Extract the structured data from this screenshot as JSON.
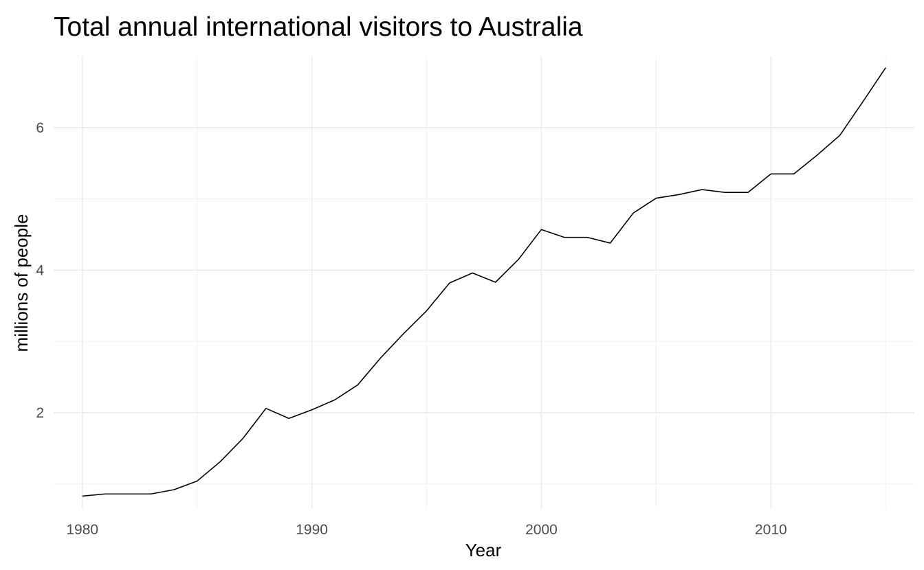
{
  "chart_data": {
    "type": "line",
    "title": "Total annual international visitors to Australia",
    "xlabel": "Year",
    "ylabel": "millions of people",
    "xlim": [
      1978.75,
      2016.25
    ],
    "ylim": [
      0.66,
      7.0
    ],
    "x_major_ticks": [
      1980,
      1990,
      2000,
      2010
    ],
    "x_minor_ticks": [
      1985,
      1995,
      2005,
      2015
    ],
    "y_major_ticks": [
      2,
      4,
      6
    ],
    "y_minor_ticks": [
      1,
      3,
      5
    ],
    "grid": true,
    "legend": "none",
    "series": [
      {
        "x": [
          1980,
          1981,
          1982,
          1983,
          1984,
          1985,
          1986,
          1987,
          1988,
          1989,
          1990,
          1991,
          1992,
          1993,
          1994,
          1995,
          1996,
          1997,
          1998,
          1999,
          2000,
          2001,
          2002,
          2003,
          2004,
          2005,
          2006,
          2007,
          2008,
          2009,
          2010,
          2011,
          2012,
          2013,
          2014,
          2015
        ],
        "values": [
          0.83,
          0.86,
          0.86,
          0.86,
          0.92,
          1.04,
          1.31,
          1.64,
          2.06,
          1.92,
          2.04,
          2.18,
          2.39,
          2.77,
          3.11,
          3.43,
          3.82,
          3.96,
          3.83,
          4.15,
          4.57,
          4.46,
          4.46,
          4.38,
          4.8,
          5.01,
          5.06,
          5.13,
          5.09,
          5.09,
          5.35,
          5.35,
          5.61,
          5.89,
          6.36,
          6.84
        ]
      }
    ]
  }
}
